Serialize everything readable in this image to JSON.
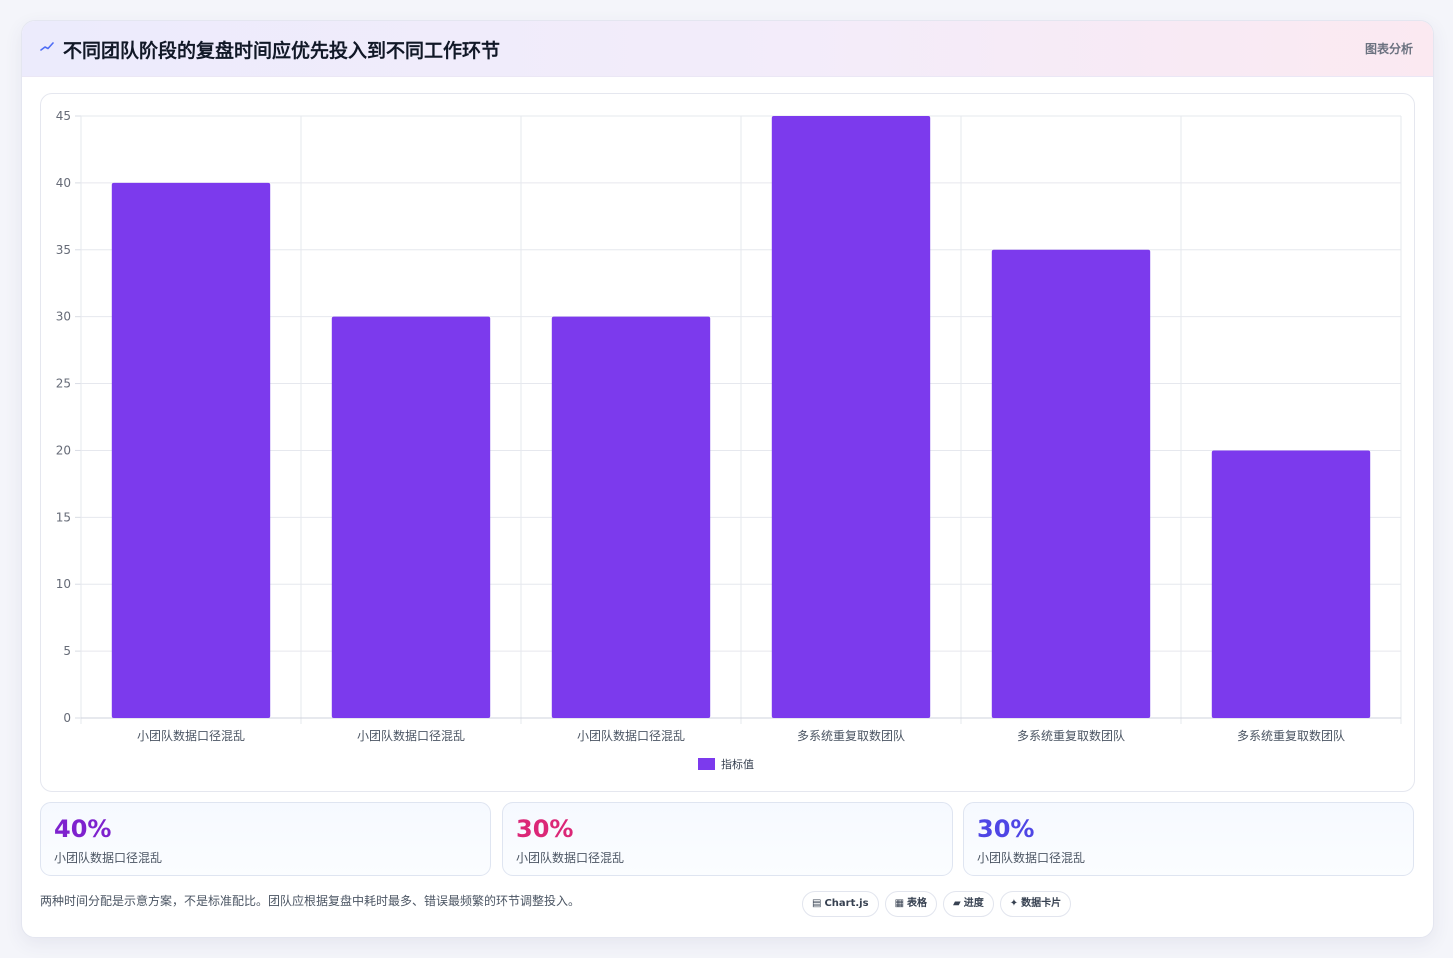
{
  "header": {
    "title": "不同团队阶段的复盘时间应优先投入到不同工作环节",
    "tag": "图表分析",
    "icon": "sparkline-icon"
  },
  "chart_data": {
    "type": "bar",
    "categories": [
      "小团队数据口径混乱",
      "小团队数据口径混乱",
      "小团队数据口径混乱",
      "多系统重复取数团队",
      "多系统重复取数团队",
      "多系统重复取数团队"
    ],
    "series": [
      {
        "name": "指标值",
        "values": [
          40,
          30,
          30,
          45,
          35,
          20
        ],
        "color": "#7c3aed"
      }
    ],
    "ylim": [
      0,
      45
    ],
    "yticks": [
      0,
      5,
      10,
      15,
      20,
      25,
      30,
      35,
      40,
      45
    ],
    "grid": true,
    "legend_position": "bottom"
  },
  "stats": [
    {
      "value": "40%",
      "label": "小团队数据口径混乱",
      "color": "#7e22ce"
    },
    {
      "value": "30%",
      "label": "小团队数据口径混乱",
      "color": "#db2777"
    },
    {
      "value": "30%",
      "label": "小团队数据口径混乱",
      "color": "#4f46e5"
    }
  ],
  "footnote": "两种时间分配是示意方案，不是标准配比。团队应根据复盘中耗时最多、错误最频繁的环节调整投入。",
  "chips": [
    {
      "icon": "▤",
      "label": "Chart.js"
    },
    {
      "icon": "▦",
      "label": "表格"
    },
    {
      "icon": "▰",
      "label": "进度"
    },
    {
      "icon": "✦",
      "label": "数据卡片"
    }
  ]
}
